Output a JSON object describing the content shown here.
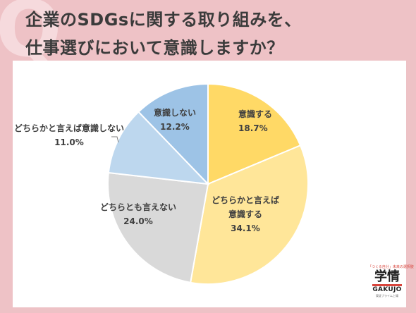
{
  "title": {
    "line1": "企業のSDGsに関する取り組みを、",
    "line2": "仕事選びにおいて意識しますか？"
  },
  "chart_data": {
    "type": "pie",
    "title": "",
    "start_angle_deg": 0,
    "direction": "clockwise",
    "slices": [
      {
        "label_lines": [
          "意識する"
        ],
        "value": 18.7,
        "value_text": "18.7%",
        "color": "#ffd966"
      },
      {
        "label_lines": [
          "どちらかと言えば",
          "意識する"
        ],
        "value": 34.1,
        "value_text": "34.1%",
        "color": "#ffe699"
      },
      {
        "label_lines": [
          "どちらとも言えない"
        ],
        "value": 24.0,
        "value_text": "24.0%",
        "color": "#d9d9d9"
      },
      {
        "label_lines": [
          "どちらかと言えば意識しない"
        ],
        "value": 11.0,
        "value_text": "11.0%",
        "color": "#bdd7ee"
      },
      {
        "label_lines": [
          "意識しない"
        ],
        "value": 12.2,
        "value_text": "12.2%",
        "color": "#9dc3e6"
      }
    ]
  },
  "logo": {
    "tagline": "「つくる自分」未来の選択肢",
    "mark": "学情",
    "name": "GAKUJO",
    "footer": "東証プライム上場"
  }
}
